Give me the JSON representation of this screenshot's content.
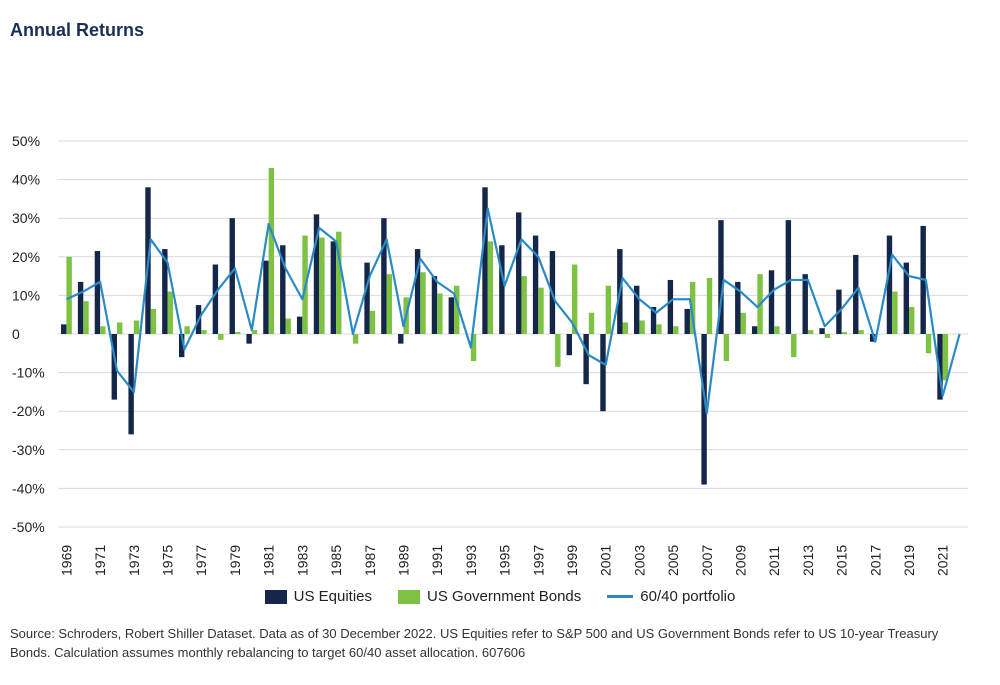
{
  "title": "Annual Returns",
  "source": "Source: Schroders, Robert Shiller Dataset. Data as of 30 December 2022. US Equities refer to S&P 500 and US Government Bonds refer to US 10-year Treasury Bonds. Calculation assumes monthly rebalancing to target 60/40 asset allocation. 607606",
  "colors": {
    "equities": "#14264a",
    "bonds": "#7dc242",
    "portfolio": "#2a8ac6",
    "grid": "#d9d9d9"
  },
  "chart_data": {
    "type": "bar",
    "y_tick_labels": [
      "50%",
      "40%",
      "30%",
      "20%",
      "10%",
      "0",
      "-10%",
      "-20%",
      "-30%",
      "-40%",
      "-50%"
    ],
    "ylim": [
      -50,
      50
    ],
    "grid": true,
    "legend_position": "bottom",
    "x": [
      1969,
      1970,
      1971,
      1972,
      1973,
      1974,
      1975,
      1976,
      1977,
      1978,
      1979,
      1980,
      1981,
      1982,
      1983,
      1984,
      1985,
      1986,
      1987,
      1988,
      1989,
      1990,
      1991,
      1992,
      1993,
      1994,
      1995,
      1996,
      1997,
      1998,
      1999,
      2000,
      2001,
      2002,
      2003,
      2004,
      2005,
      2006,
      2007,
      2008,
      2009,
      2010,
      2011,
      2012,
      2013,
      2014,
      2015,
      2016,
      2017,
      2018,
      2019,
      2020,
      2021,
      2022
    ],
    "x_tick_labels": [
      "1969",
      "1971",
      "1973",
      "1975",
      "1977",
      "1979",
      "1981",
      "1983",
      "1985",
      "1987",
      "1989",
      "1991",
      "1993",
      "1995",
      "1997",
      "1999",
      "2001",
      "2003",
      "2005",
      "2007",
      "2009",
      "2011",
      "2013",
      "2015",
      "2017",
      "2019",
      "2021"
    ],
    "series": [
      {
        "name": "US Equities",
        "kind": "bar",
        "values": [
          2.5,
          13.5,
          21.5,
          -17,
          -26,
          38,
          22,
          -6,
          7.5,
          18,
          30,
          -2.5,
          19,
          23,
          4.5,
          31,
          24,
          0,
          18.5,
          30,
          -2.5,
          22,
          15,
          9.5,
          0,
          38,
          23,
          31.5,
          25.5,
          21.5,
          -5.5,
          -13,
          -20,
          22,
          12.5,
          7,
          14,
          6.5,
          -39,
          29.5,
          13.5,
          2,
          16.5,
          29.5,
          15.5,
          1.5,
          11.5,
          20.5,
          -2,
          25.5,
          18.5,
          28,
          -17,
          0
        ]
      },
      {
        "name": "US Government Bonds",
        "kind": "bar",
        "values": [
          20,
          8.5,
          2,
          3,
          3.5,
          6.5,
          11,
          2,
          1,
          -1.5,
          0.5,
          1,
          43,
          4,
          25.5,
          25,
          26.5,
          -2.5,
          6,
          15.5,
          9.5,
          16,
          10.5,
          12.5,
          -7,
          24,
          0,
          15,
          12,
          -8.5,
          18,
          5.5,
          12.5,
          3,
          3.5,
          2.5,
          2,
          13.5,
          14.5,
          -7,
          5.5,
          15.5,
          2,
          -6,
          1,
          -1,
          0.5,
          1,
          0,
          11,
          7,
          -5,
          -12,
          0
        ]
      },
      {
        "name": "60/40 portfolio",
        "kind": "line",
        "values": [
          9,
          11,
          13.5,
          -9.5,
          -15,
          24.5,
          18.5,
          -4,
          5,
          11.5,
          17,
          1,
          28.5,
          17,
          9,
          27.5,
          24,
          0,
          15,
          24.5,
          2,
          19.5,
          13.5,
          10.5,
          -3.5,
          32.5,
          12.5,
          24.5,
          20,
          8.5,
          3,
          -5.5,
          -8,
          14.5,
          9,
          5.5,
          9,
          9,
          -20.5,
          14,
          11,
          7,
          11.5,
          14,
          14,
          2,
          6.5,
          12,
          -2,
          20.5,
          15,
          14,
          -16,
          0
        ]
      }
    ]
  }
}
